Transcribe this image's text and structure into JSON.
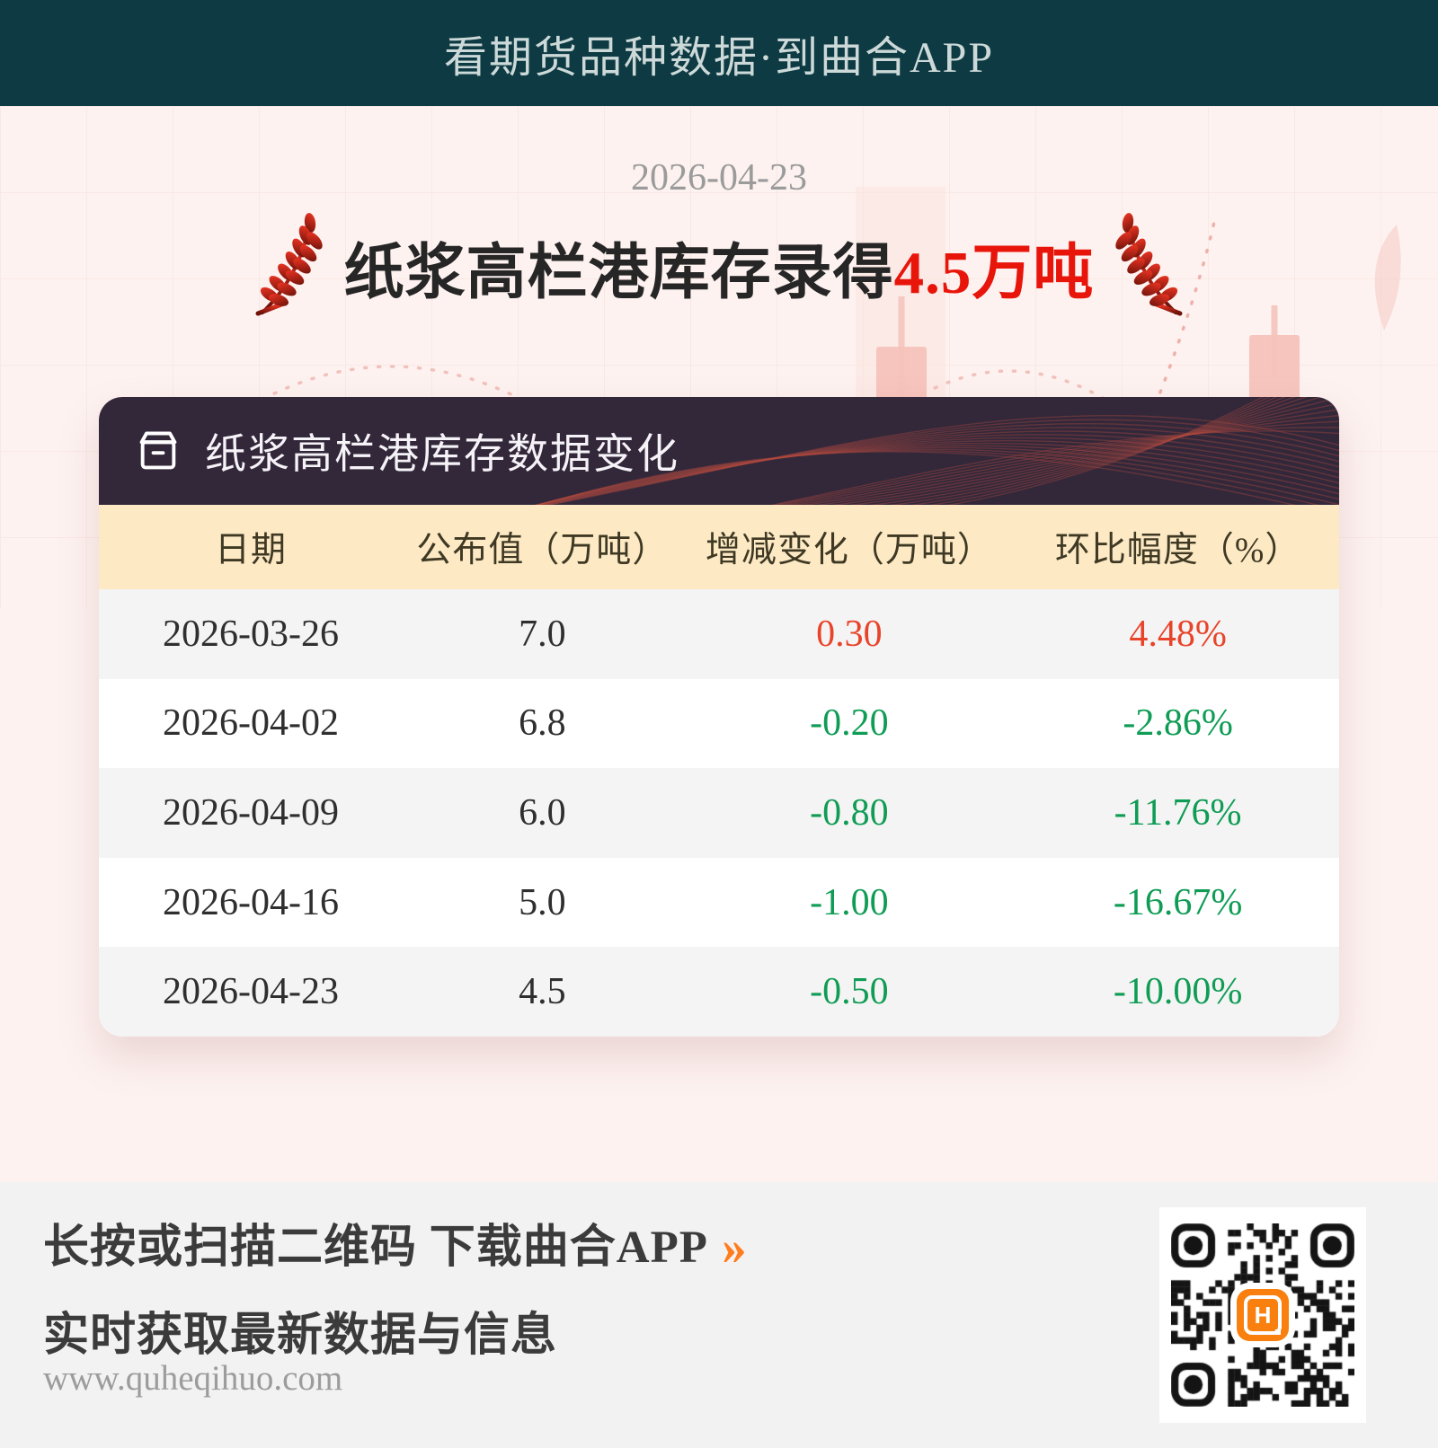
{
  "banner": {
    "title": "看期货品种数据·到曲合APP"
  },
  "report": {
    "date": "2026-04-23",
    "headline_prefix": "纸浆高栏港库存录得",
    "headline_value": "4.5万吨"
  },
  "card": {
    "title": "纸浆高栏港库存数据变化",
    "table": {
      "columns": [
        "日期",
        "公布值（万吨）",
        "增减变化（万吨）",
        "环比幅度（%）"
      ],
      "rows": [
        {
          "date": "2026-03-26",
          "value": "7.0",
          "change": "0.30",
          "pct": "4.48%",
          "trend": "up"
        },
        {
          "date": "2026-04-02",
          "value": "6.8",
          "change": "-0.20",
          "pct": "-2.86%",
          "trend": "down"
        },
        {
          "date": "2026-04-09",
          "value": "6.0",
          "change": "-0.80",
          "pct": "-11.76%",
          "trend": "down"
        },
        {
          "date": "2026-04-16",
          "value": "5.0",
          "change": "-1.00",
          "pct": "-16.67%",
          "trend": "down"
        },
        {
          "date": "2026-04-23",
          "value": "4.5",
          "change": "-0.50",
          "pct": "-10.00%",
          "trend": "down"
        }
      ]
    }
  },
  "footer": {
    "cta": "长按或扫描二维码 下载曲合APP",
    "cta_arrow": "››",
    "subtitle": "实时获取最新数据与信息",
    "website": "www.quheqihuo.com"
  },
  "icons": {
    "card_header": "archive-box-icon",
    "title_left": "wheat-ear-icon",
    "title_right": "wheat-ear-icon",
    "qr_center": "quhe-app-logo"
  },
  "colors": {
    "banner_bg": "#0d3a43",
    "banner_text": "#ccd9d8",
    "hero_bg": "#fdf2f0",
    "headline_red": "#e8150b",
    "card_header_bg": "#33283a",
    "table_header_bg": "#fdeac5",
    "row_alt_bg": "#f5f4f4",
    "up": "#e8442a",
    "down": "#0f9c55",
    "accent_orange": "#ff7d1f"
  },
  "chart_data": {
    "type": "table",
    "title": "纸浆高栏港库存数据变化",
    "columns": [
      "日期",
      "公布值（万吨）",
      "增减变化（万吨）",
      "环比幅度（%）"
    ],
    "rows": [
      [
        "2026-03-26",
        7.0,
        0.3,
        4.48
      ],
      [
        "2026-04-02",
        6.8,
        -0.2,
        -2.86
      ],
      [
        "2026-04-09",
        6.0,
        -0.8,
        -11.76
      ],
      [
        "2026-04-16",
        5.0,
        -1.0,
        -16.67
      ],
      [
        "2026-04-23",
        4.5,
        -0.5,
        -10.0
      ]
    ],
    "units": {
      "value": "万吨",
      "pct": "%"
    },
    "latest_value_highlight": "4.5万吨"
  }
}
